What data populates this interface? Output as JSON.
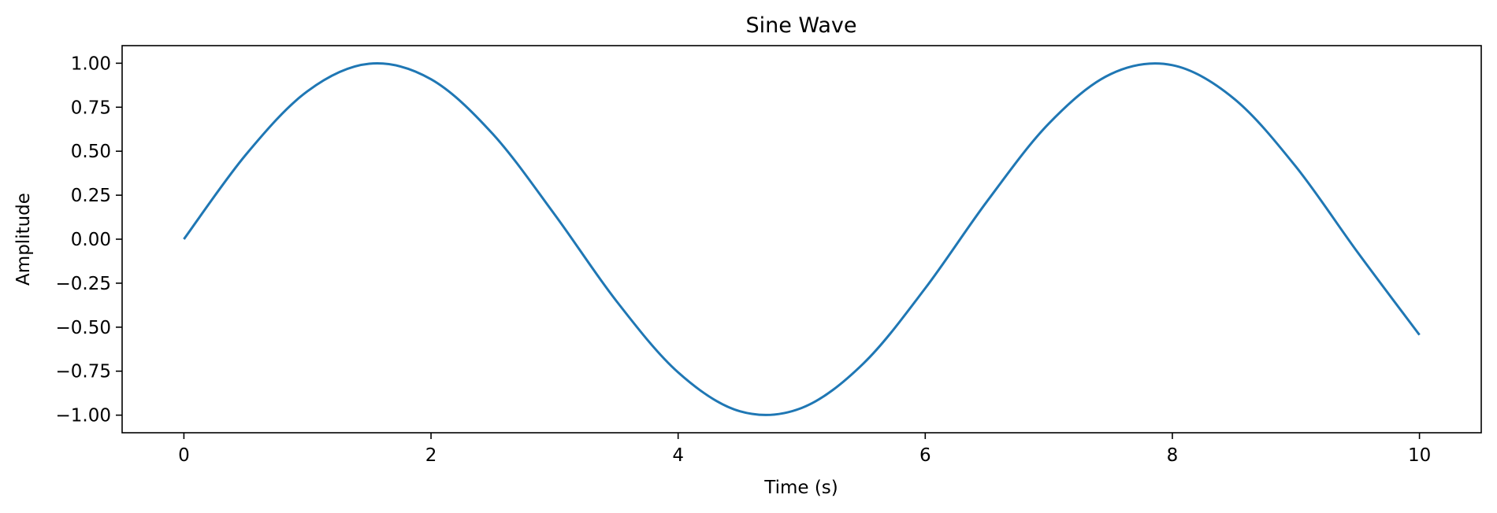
{
  "chart_data": {
    "type": "line",
    "title": "Sine Wave",
    "xlabel": "Time (s)",
    "ylabel": "Amplitude",
    "xlim": [
      -0.5,
      10.5
    ],
    "ylim": [
      -1.1,
      1.1
    ],
    "x_ticks": [
      0,
      2,
      4,
      6,
      8,
      10
    ],
    "x_tick_labels": [
      "0",
      "2",
      "4",
      "6",
      "8",
      "10"
    ],
    "y_ticks": [
      1.0,
      0.75,
      0.5,
      0.25,
      0.0,
      -0.25,
      -0.5,
      -0.75,
      -1.0
    ],
    "y_tick_labels": [
      "1.00",
      "0.75",
      "0.50",
      "0.25",
      "0.00",
      "−0.25",
      "−0.50",
      "−0.75",
      "−1.00"
    ],
    "grid": false,
    "series": [
      {
        "color": "#1f77b4",
        "x": [
          0,
          0.5,
          1,
          1.5,
          2,
          2.5,
          3,
          3.5,
          4,
          4.5,
          5,
          5.5,
          6,
          6.5,
          7,
          7.5,
          8,
          8.5,
          9,
          9.5,
          10
        ],
        "y": [
          0.0,
          0.479,
          0.841,
          0.997,
          0.909,
          0.598,
          0.141,
          -0.351,
          -0.757,
          -0.978,
          -0.959,
          -0.706,
          -0.279,
          0.215,
          0.657,
          0.938,
          0.989,
          0.798,
          0.412,
          -0.075,
          -0.544
        ]
      }
    ]
  }
}
